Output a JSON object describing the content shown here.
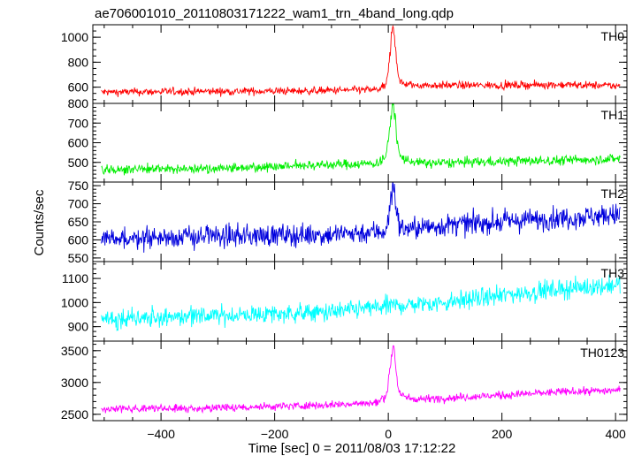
{
  "chart_data": {
    "type": "line",
    "title": "ae706001010_20110803171222_wam1_trn_4band_long.qdp",
    "xlabel": "Time [sec] 0 = 2011/08/03 17:12:22",
    "ylabel": "Counts/sec",
    "xlim": [
      -520,
      420
    ],
    "x_ticks": [
      -400,
      -200,
      0,
      200,
      400
    ],
    "x_range_data": [
      -505,
      408
    ],
    "panels": [
      {
        "name": "TH0",
        "color": "#ff0000",
        "ylim": [
          470,
          1100
        ],
        "y_ticks": [
          600,
          800,
          1000
        ],
        "baseline": [
          [
            -505,
            560
          ],
          [
            -350,
            565
          ],
          [
            -150,
            570
          ],
          [
            -20,
            580
          ],
          [
            0,
            610
          ],
          [
            15,
            620
          ],
          [
            60,
            615
          ],
          [
            200,
            615
          ],
          [
            300,
            620
          ],
          [
            408,
            610
          ]
        ],
        "noise": 22,
        "peak": {
          "x": 8,
          "y": 1100
        }
      },
      {
        "name": "TH1",
        "color": "#00ee00",
        "ylim": [
          400,
          800
        ],
        "y_ticks": [
          500,
          600,
          700,
          800
        ],
        "baseline": [
          [
            -505,
            465
          ],
          [
            -300,
            470
          ],
          [
            -150,
            485
          ],
          [
            -20,
            495
          ],
          [
            0,
            540
          ],
          [
            15,
            520
          ],
          [
            60,
            495
          ],
          [
            200,
            505
          ],
          [
            300,
            510
          ],
          [
            408,
            520
          ]
        ],
        "noise": 18,
        "peak": {
          "x": 8,
          "y": 810
        }
      },
      {
        "name": "TH2",
        "color": "#0000dd",
        "ylim": [
          540,
          760
        ],
        "y_ticks": [
          550,
          600,
          650,
          700,
          750
        ],
        "baseline": [
          [
            -505,
            605
          ],
          [
            -300,
            610
          ],
          [
            -100,
            615
          ],
          [
            0,
            625
          ],
          [
            100,
            640
          ],
          [
            200,
            650
          ],
          [
            300,
            660
          ],
          [
            408,
            670
          ]
        ],
        "noise": 22,
        "peak": {
          "x": 8,
          "y": 755
        }
      },
      {
        "name": "TH3",
        "color": "#00ffff",
        "ylim": [
          840,
          1170
        ],
        "y_ticks": [
          900,
          1000,
          1100
        ],
        "baseline": [
          [
            -505,
            935
          ],
          [
            -300,
            945
          ],
          [
            -100,
            960
          ],
          [
            0,
            985
          ],
          [
            100,
            1000
          ],
          [
            200,
            1030
          ],
          [
            300,
            1055
          ],
          [
            408,
            1075
          ]
        ],
        "noise": 28,
        "peak": null
      },
      {
        "name": "TH0123",
        "color": "#ff00ff",
        "ylim": [
          2400,
          3650
        ],
        "y_ticks": [
          2500,
          3000,
          3500
        ],
        "baseline": [
          [
            -505,
            2580
          ],
          [
            -300,
            2600
          ],
          [
            -100,
            2650
          ],
          [
            -20,
            2680
          ],
          [
            0,
            2800
          ],
          [
            15,
            2770
          ],
          [
            60,
            2740
          ],
          [
            200,
            2800
          ],
          [
            300,
            2850
          ],
          [
            408,
            2880
          ]
        ],
        "noise": 45,
        "peak": {
          "x": 8,
          "y": 3620
        }
      }
    ]
  }
}
